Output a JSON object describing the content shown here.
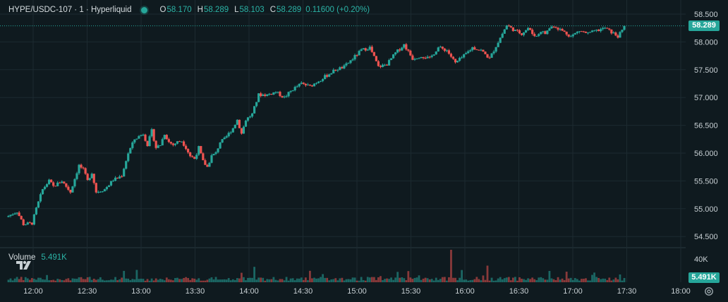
{
  "legend": {
    "symbol": "HYPE/USDC-107 · 1 · Hyperliquid",
    "open_label": "O",
    "open": "58.170",
    "high_label": "H",
    "high": "58.289",
    "low_label": "L",
    "low": "58.103",
    "close_label": "C",
    "close": "58.289",
    "change": "0.11600 (+0.20%)"
  },
  "volume_legend": {
    "name": "Volume",
    "value": "5.491K"
  },
  "price_tag": "58.289",
  "volume_tag": "5.491K",
  "volume_axis_label": "40K",
  "colors": {
    "background": "#0f1a1f",
    "up": "#26a69a",
    "down": "#ef5350",
    "grid": "#1c2a30",
    "text": "#c8d0d4"
  },
  "icons": {
    "logo": "tradingview-logo-icon",
    "settings": "gear-icon"
  },
  "chart_data": {
    "type": "candlestick",
    "title": "",
    "xlabel": "",
    "ylabel": "",
    "x_ticks": [
      "12:00",
      "12:30",
      "13:00",
      "13:30",
      "14:00",
      "14:30",
      "15:00",
      "15:30",
      "16:00",
      "16:30",
      "17:00",
      "17:30",
      "18:00"
    ],
    "y_ticks": [
      "58.500",
      "58.000",
      "57.500",
      "57.000",
      "56.500",
      "56.000",
      "55.500",
      "55.000",
      "54.500"
    ],
    "ylim": [
      54.3,
      58.6
    ],
    "last_price": 58.289,
    "x_start_time": "11:53",
    "bar_minutes": 1,
    "path_minutes": [
      0,
      5,
      8,
      12,
      14,
      17,
      20,
      22,
      26,
      30,
      34,
      36,
      38,
      40,
      42,
      46,
      50,
      52,
      54,
      57,
      60,
      64,
      66,
      68,
      70,
      72,
      74,
      76,
      78,
      80,
      82,
      84,
      86,
      88,
      90,
      92,
      94,
      96,
      98,
      100,
      102,
      104,
      106,
      108,
      110,
      112,
      115,
      118,
      122,
      126,
      130,
      134,
      138,
      142,
      146,
      150,
      154,
      158,
      162,
      166,
      170,
      174,
      178,
      182,
      186,
      190,
      194,
      198,
      202,
      206,
      210,
      214,
      218,
      222,
      226,
      230,
      234,
      238,
      241,
      244,
      246,
      248,
      250,
      252,
      254,
      256,
      260,
      264,
      268,
      272,
      276,
      280,
      284,
      286,
      288,
      289
    ],
    "path_prices": [
      54.85,
      54.95,
      54.72,
      54.74,
      55.0,
      55.35,
      55.5,
      55.4,
      55.5,
      55.3,
      55.78,
      55.7,
      55.5,
      55.65,
      55.3,
      55.35,
      55.52,
      55.55,
      55.6,
      56.0,
      56.25,
      56.35,
      56.15,
      56.4,
      56.1,
      56.15,
      56.35,
      56.2,
      56.15,
      56.2,
      56.22,
      56.1,
      55.95,
      55.9,
      56.1,
      55.85,
      55.75,
      55.95,
      56.0,
      56.2,
      56.25,
      56.35,
      56.45,
      56.6,
      56.35,
      56.6,
      56.7,
      57.05,
      57.05,
      57.1,
      57.0,
      57.15,
      57.25,
      57.2,
      57.3,
      57.4,
      57.5,
      57.55,
      57.7,
      57.85,
      57.9,
      57.55,
      57.6,
      57.8,
      57.95,
      57.7,
      57.75,
      57.7,
      57.9,
      57.85,
      57.62,
      57.75,
      57.9,
      57.85,
      57.7,
      58.0,
      58.3,
      58.2,
      58.15,
      58.25,
      58.15,
      58.1,
      58.2,
      58.15,
      58.25,
      58.289,
      58.2,
      58.1,
      58.2,
      58.15,
      58.2,
      58.25,
      58.15,
      58.1,
      58.2,
      58.289
    ],
    "volume_max": 42000,
    "volume_last": 5491
  }
}
